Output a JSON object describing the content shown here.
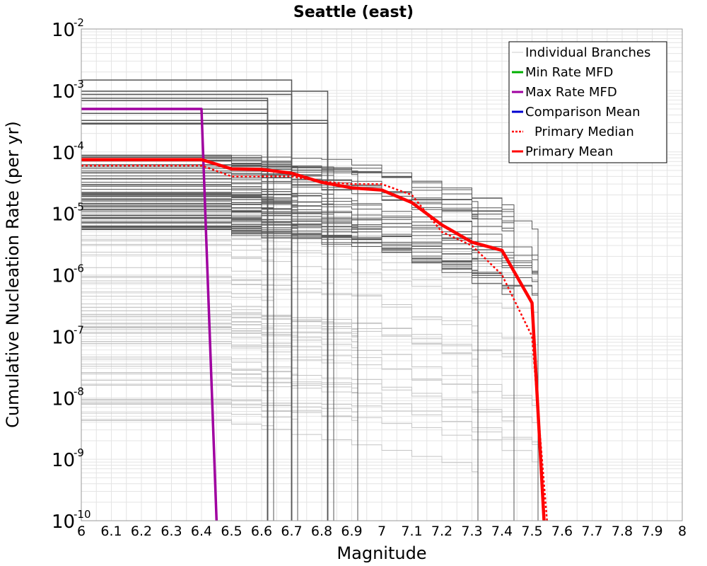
{
  "chart_data": {
    "type": "line",
    "title": "Seattle (east)",
    "xlabel": "Magnitude",
    "ylabel": "Cumulative Nucleation Rate (per yr)",
    "xlim": [
      6,
      8
    ],
    "ylim": [
      1e-10,
      0.01
    ],
    "yscale": "log",
    "grid": true,
    "legend_position": "top-right",
    "x_ticks": [
      "6",
      "6.1",
      "6.2",
      "6.3",
      "6.4",
      "6.5",
      "6.6",
      "6.7",
      "6.8",
      "6.9",
      "7",
      "7.1",
      "7.2",
      "7.3",
      "7.4",
      "7.5",
      "7.6",
      "7.7",
      "7.8",
      "7.9",
      "8"
    ],
    "y_tick_base": "10",
    "y_tick_exponents": [
      "-10",
      "-9",
      "-8",
      "-7",
      "-6",
      "-5",
      "-4",
      "-3",
      "-2"
    ],
    "legend": [
      {
        "label": "Individual Branches",
        "color": "#cccccc",
        "style": "solid"
      },
      {
        "label": "Min Rate MFD",
        "color": "#00b000",
        "style": "solid"
      },
      {
        "label": "Max Rate MFD",
        "color": "#a000a0",
        "style": "solid"
      },
      {
        "label": "Comparison Mean",
        "color": "#0000d0",
        "style": "solid"
      },
      {
        "label": "Primary Median",
        "color": "#ff0000",
        "style": "dotted"
      },
      {
        "label": "Primary Mean",
        "color": "#ff0000",
        "style": "solid"
      }
    ],
    "series": [
      {
        "name": "Max Rate MFD",
        "color": "#a000a0",
        "x": [
          6.0,
          6.4,
          6.45
        ],
        "y": [
          0.0005,
          0.0005,
          1e-10
        ]
      },
      {
        "name": "Primary Median",
        "color": "#ff0000",
        "x": [
          6.0,
          6.4,
          6.5,
          6.6,
          6.7,
          6.8,
          6.9,
          7.0,
          7.1,
          7.2,
          7.3,
          7.4,
          7.5,
          7.55
        ],
        "y": [
          6e-05,
          6e-05,
          4e-05,
          4e-05,
          4e-05,
          3.3e-05,
          3e-05,
          3e-05,
          2e-05,
          5e-06,
          3e-06,
          1e-06,
          1e-07,
          1e-10
        ]
      },
      {
        "name": "Primary Mean",
        "color": "#ff0000",
        "x": [
          6.0,
          6.4,
          6.5,
          6.6,
          6.7,
          6.8,
          6.9,
          7.0,
          7.1,
          7.2,
          7.3,
          7.4,
          7.5,
          7.54
        ],
        "y": [
          7.5e-05,
          7.5e-05,
          5.3e-05,
          5.2e-05,
          4.5e-05,
          3.2e-05,
          2.6e-05,
          2.4e-05,
          1.5e-05,
          6.5e-06,
          3.4e-06,
          2.5e-06,
          3.5e-07,
          1e-10
        ]
      }
    ]
  }
}
